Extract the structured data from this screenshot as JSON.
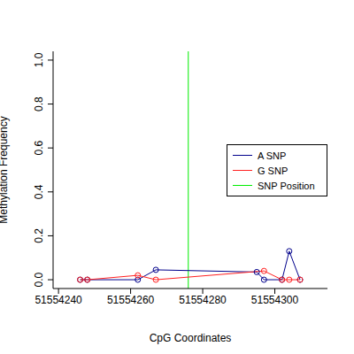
{
  "chart_data": {
    "type": "line",
    "x_label": "CpG Coordinates",
    "y_label": "Methylation Frequency",
    "xlim": [
      51554238.5,
      51554314.6
    ],
    "xticks": [
      51554240,
      51554260,
      51554280,
      51554300
    ],
    "ylim": [
      -0.04,
      1.04
    ],
    "yticks": [
      {
        "value": 0,
        "label": "0.0"
      },
      {
        "value": 0.2,
        "label": "0.2"
      },
      {
        "value": 0.4,
        "label": "0.4"
      },
      {
        "value": 0.6,
        "label": "0.6"
      },
      {
        "value": 0.8,
        "label": "0.8"
      },
      {
        "value": 1,
        "label": "1.0"
      }
    ],
    "legend": "right",
    "marker": "open_circle",
    "series": [
      {
        "name": "A SNP",
        "color": "#00008b",
        "x": [
          51554246,
          51554248,
          51554262,
          51554267,
          51554295,
          51554297,
          51554302,
          51554304,
          51554307
        ],
        "values": [
          0,
          0,
          0,
          0.045,
          0.035,
          0,
          0,
          0.13,
          0
        ]
      },
      {
        "name": "G SNP",
        "color": "#ff2020",
        "x": [
          51554246,
          51554248,
          51554262,
          51554267,
          51554297,
          51554302,
          51554304,
          51554307
        ],
        "values": [
          0,
          0,
          0.02,
          0,
          0.04,
          0,
          0,
          0
        ]
      }
    ],
    "vertical_line": {
      "name": "SNP Position",
      "x": 51554276,
      "color": "#00ee00"
    }
  }
}
